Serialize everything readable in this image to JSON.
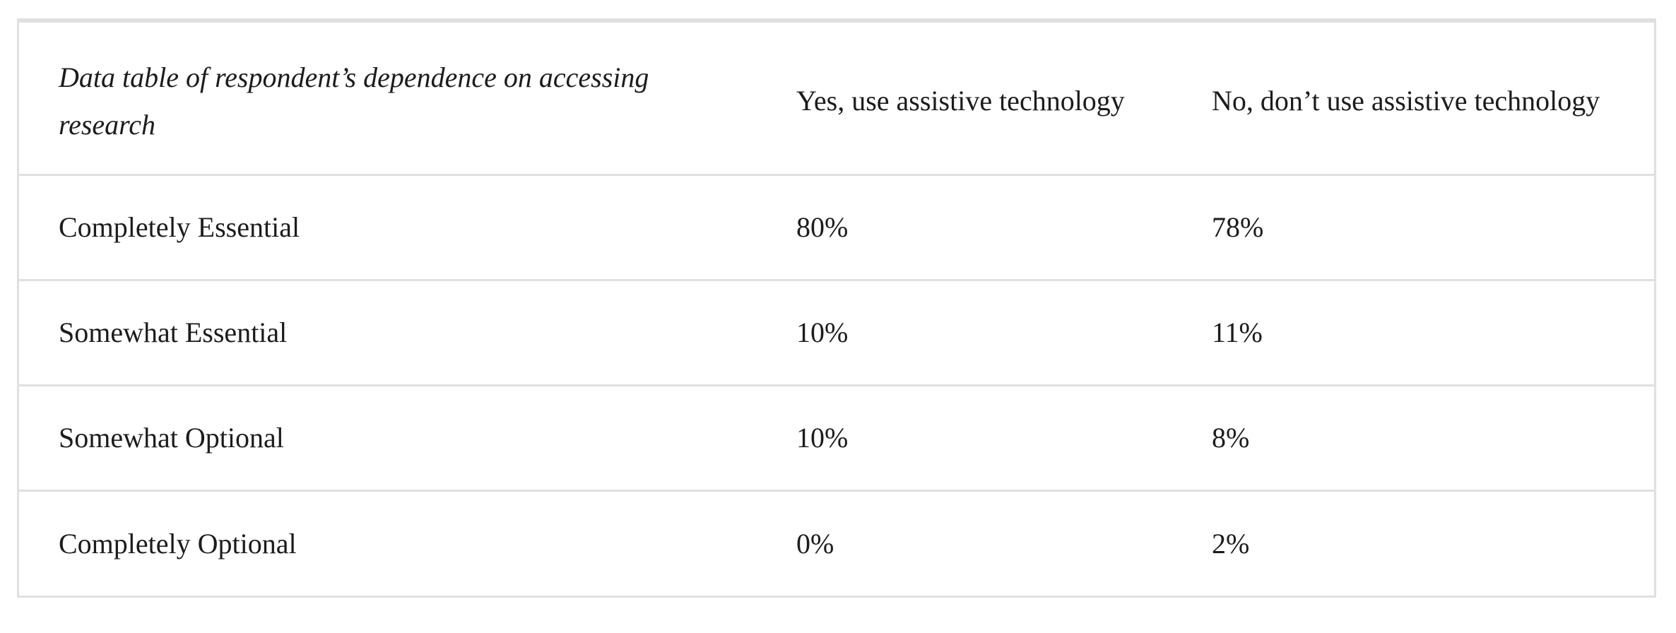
{
  "table": {
    "headers": [
      "Data table of respondent’s dependence on accessing research",
      "Yes, use assistive technology",
      "No, don’t use assistive technology"
    ],
    "rows": [
      [
        "Completely Essential",
        "80%",
        "78%"
      ],
      [
        "Somewhat Essential",
        "10%",
        "11%"
      ],
      [
        "Somewhat Optional",
        "10%",
        "8%"
      ],
      [
        "Completely Optional",
        "0%",
        "2%"
      ]
    ]
  },
  "colors": {
    "text": "#1c1c1c",
    "border": "#e0e0e0",
    "background": "#ffffff"
  }
}
